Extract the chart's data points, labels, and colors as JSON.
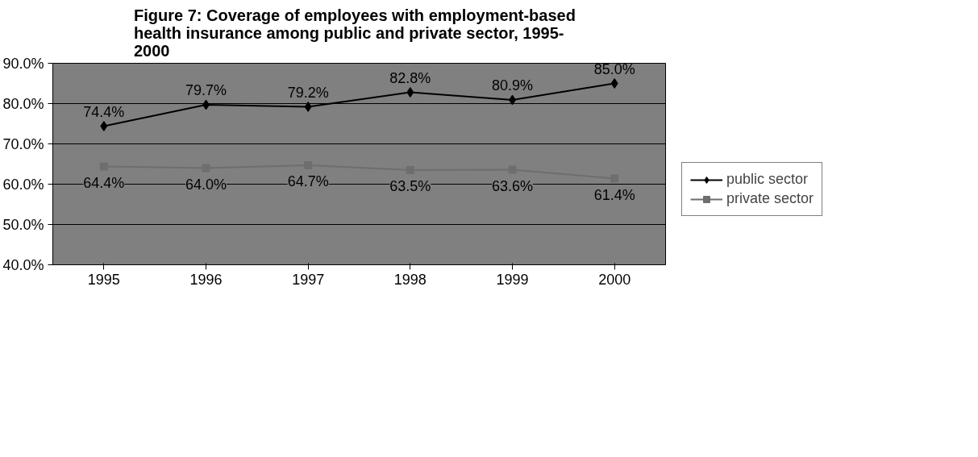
{
  "chart_data": {
    "type": "line",
    "title": "Figure 7:   Coverage of employees with employment-based\nhealth insurance among public and private sector, 1995-\n2000",
    "categories": [
      "1995",
      "1996",
      "1997",
      "1998",
      "1999",
      "2000"
    ],
    "series": [
      {
        "name": "public sector",
        "color": "#000000",
        "marker": "diamond",
        "values": [
          74.4,
          79.7,
          79.2,
          82.8,
          80.9,
          85.0
        ],
        "value_labels": [
          "74.4%",
          "79.7%",
          "79.2%",
          "82.8%",
          "80.9%",
          "85.0%"
        ]
      },
      {
        "name": "private sector",
        "color": "#6e6e6e",
        "marker": "square",
        "values": [
          64.4,
          64.0,
          64.7,
          63.5,
          63.6,
          61.4
        ],
        "value_labels": [
          "64.4%",
          "64.0%",
          "64.7%",
          "63.5%",
          "63.6%",
          "61.4%"
        ]
      }
    ],
    "ylim": [
      40,
      90
    ],
    "yticks": [
      {
        "value": 40,
        "label": "40.0%"
      },
      {
        "value": 50,
        "label": "50.0%"
      },
      {
        "value": 60,
        "label": "60.0%"
      },
      {
        "value": 70,
        "label": "70.0%"
      },
      {
        "value": 80,
        "label": "80.0%"
      },
      {
        "value": 90,
        "label": "90.0%"
      }
    ],
    "grid": "y",
    "legend": "right",
    "data_labels": true,
    "line_style": "solid"
  }
}
